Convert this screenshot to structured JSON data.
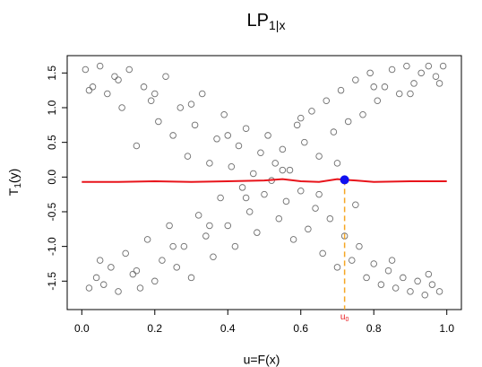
{
  "chart_data": {
    "type": "scatter",
    "title": "LP",
    "title_sub": "1|x",
    "x_label": "u=F(x)",
    "y_label": "T",
    "y_label_sub": "1",
    "y_label_tail": "(y)",
    "xlim": [
      -0.04,
      1.04
    ],
    "ylim": [
      -1.91,
      1.75
    ],
    "xticks": [
      {
        "value": 0,
        "label": "0.0"
      },
      0.2,
      0.4,
      0.6,
      0.8,
      {
        "value": 1,
        "label": "1.0"
      }
    ],
    "yticks": [
      -1.5,
      {
        "value": -1,
        "label": "-1.0"
      },
      -0.5,
      {
        "value": 0,
        "label": "0.0"
      },
      0.5,
      {
        "value": 1,
        "label": "1.0"
      },
      1.5
    ],
    "points": {
      "color": "#6e6e6e",
      "x": [
        0.01,
        0.02,
        0.03,
        0.04,
        0.05,
        0.06,
        0.07,
        0.08,
        0.09,
        0.1,
        0.11,
        0.12,
        0.13,
        0.14,
        0.15,
        0.16,
        0.17,
        0.18,
        0.19,
        0.2,
        0.21,
        0.22,
        0.23,
        0.24,
        0.25,
        0.26,
        0.27,
        0.28,
        0.29,
        0.3,
        0.31,
        0.32,
        0.33,
        0.34,
        0.35,
        0.36,
        0.37,
        0.38,
        0.39,
        0.4,
        0.41,
        0.42,
        0.43,
        0.44,
        0.45,
        0.46,
        0.47,
        0.48,
        0.49,
        0.5,
        0.51,
        0.52,
        0.53,
        0.54,
        0.55,
        0.56,
        0.57,
        0.58,
        0.59,
        0.6,
        0.61,
        0.62,
        0.63,
        0.64,
        0.65,
        0.66,
        0.67,
        0.68,
        0.69,
        0.7,
        0.71,
        0.72,
        0.73,
        0.74,
        0.75,
        0.76,
        0.77,
        0.78,
        0.79,
        0.8,
        0.81,
        0.82,
        0.83,
        0.84,
        0.85,
        0.86,
        0.87,
        0.88,
        0.89,
        0.9,
        0.91,
        0.92,
        0.93,
        0.94,
        0.95,
        0.96,
        0.97,
        0.98,
        0.99,
        0.05,
        0.1,
        0.2,
        0.3,
        0.4,
        0.6,
        0.7,
        0.8,
        0.9,
        0.95,
        0.15,
        0.25,
        0.35,
        0.45,
        0.55,
        0.65,
        0.75,
        0.85,
        0.02,
        0.98
      ],
      "y": [
        1.55,
        -1.6,
        1.3,
        -1.45,
        1.6,
        -1.55,
        1.2,
        -1.3,
        1.45,
        -1.65,
        1.0,
        -1.1,
        1.55,
        -1.4,
        0.45,
        -1.6,
        1.3,
        -0.9,
        1.1,
        -1.5,
        0.8,
        -1.2,
        1.45,
        -0.7,
        0.6,
        -1.3,
        1.0,
        -1.0,
        0.3,
        -1.45,
        0.75,
        -0.55,
        1.2,
        -0.85,
        0.2,
        -1.15,
        0.55,
        -0.3,
        0.9,
        -0.7,
        0.15,
        -1.0,
        0.45,
        -0.15,
        0.7,
        -0.5,
        0.05,
        -0.8,
        0.35,
        -0.25,
        0.6,
        -0.05,
        0.2,
        -0.6,
        0.4,
        -0.35,
        0.1,
        -0.9,
        0.75,
        -0.2,
        0.5,
        -0.75,
        0.95,
        -0.45,
        0.3,
        -1.1,
        1.1,
        -0.6,
        0.65,
        -1.3,
        1.25,
        -0.85,
        0.8,
        -1.2,
        1.4,
        -1.0,
        0.9,
        -1.45,
        1.5,
        -1.25,
        1.1,
        -1.55,
        1.3,
        -1.35,
        1.55,
        -1.6,
        1.2,
        -1.45,
        1.6,
        -1.65,
        1.35,
        -1.5,
        1.5,
        -1.7,
        1.6,
        -1.55,
        1.45,
        -1.65,
        1.6,
        -1.2,
        1.4,
        1.2,
        1.05,
        0.6,
        0.85,
        0.2,
        1.3,
        1.2,
        -1.4,
        -1.35,
        -1.0,
        -0.7,
        -0.3,
        0.1,
        -0.25,
        -0.4,
        -1.2,
        1.25,
        1.35
      ]
    },
    "curve": {
      "color": "#e8141b",
      "x": [
        0,
        0.1,
        0.2,
        0.3,
        0.4,
        0.5,
        0.55,
        0.6,
        0.65,
        0.7,
        0.72,
        0.75,
        0.8,
        0.9,
        1.0
      ],
      "y": [
        -0.07,
        -0.07,
        -0.06,
        -0.07,
        -0.06,
        -0.05,
        -0.03,
        -0.06,
        -0.07,
        -0.03,
        -0.04,
        -0.05,
        -0.07,
        -0.06,
        -0.06
      ]
    },
    "marker": {
      "x": 0.72,
      "y": -0.04,
      "color": "#1010f0",
      "line_color": "#f5a623",
      "label": "u",
      "label_sub": "0",
      "label_color": "#e8141b"
    }
  }
}
